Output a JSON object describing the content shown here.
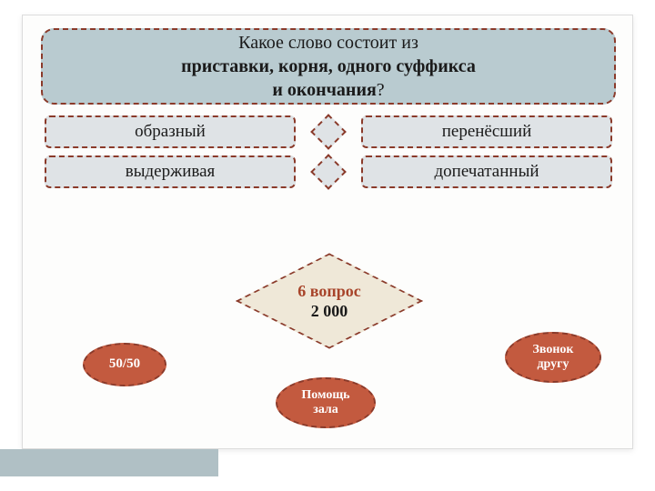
{
  "question": {
    "line1": "Какое слово состоит из",
    "line2_bold": "приставки, корня, одного суффикса",
    "line3_bold_part": "и окончания",
    "line3_tail": "?"
  },
  "answers": {
    "a": "образный",
    "b": "перенёсший",
    "c": "выдерживая",
    "d": "допечатанный"
  },
  "counter": {
    "question_label": "6 вопрос",
    "value": "2 000"
  },
  "lifelines": {
    "fifty": "50/50",
    "hall_l1": "Помощь",
    "hall_l2": "зала",
    "call_l1": "Звонок",
    "call_l2": "другу"
  },
  "colors": {
    "panel_bg": "#fdfdfc",
    "question_bg": "#b9cbd0",
    "answer_bg": "#dfe3e6",
    "dash_border": "#8a3a2a",
    "diamond_big_bg": "#efe8d8",
    "lifeline_bg": "#c35a3f",
    "footer_bar": "#b0c0c5",
    "accent_text": "#a8452b"
  }
}
